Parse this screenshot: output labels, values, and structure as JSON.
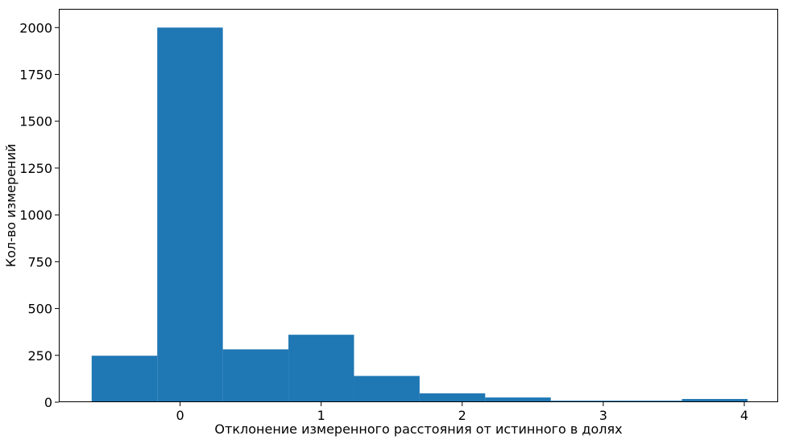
{
  "chart_data": {
    "type": "bar",
    "title": "",
    "xlabel": "Отклонение измеренного расстояния от истинного в долях",
    "ylabel": "Кол-во измерений",
    "bin_edges": [
      -0.627,
      -0.162,
      0.303,
      0.768,
      1.233,
      1.698,
      2.163,
      2.628,
      3.093,
      3.558,
      4.023
    ],
    "values": [
      248,
      2000,
      282,
      360,
      140,
      47,
      25,
      8,
      8,
      17
    ],
    "xlim": [
      -0.86,
      4.24
    ],
    "ylim": [
      0,
      2100
    ],
    "xticks": [
      {
        "value": 0,
        "label": "0"
      },
      {
        "value": 1,
        "label": "1"
      },
      {
        "value": 2,
        "label": "2"
      },
      {
        "value": 3,
        "label": "3"
      },
      {
        "value": 4,
        "label": "4"
      }
    ],
    "yticks": [
      {
        "value": 0,
        "label": "0"
      },
      {
        "value": 250,
        "label": "250"
      },
      {
        "value": 500,
        "label": "500"
      },
      {
        "value": 750,
        "label": "750"
      },
      {
        "value": 1000,
        "label": "1000"
      },
      {
        "value": 1250,
        "label": "1250"
      },
      {
        "value": 1500,
        "label": "1500"
      },
      {
        "value": 1750,
        "label": "1750"
      },
      {
        "value": 2000,
        "label": "2000"
      }
    ],
    "grid": false,
    "bar_color": "#1f77b4"
  }
}
